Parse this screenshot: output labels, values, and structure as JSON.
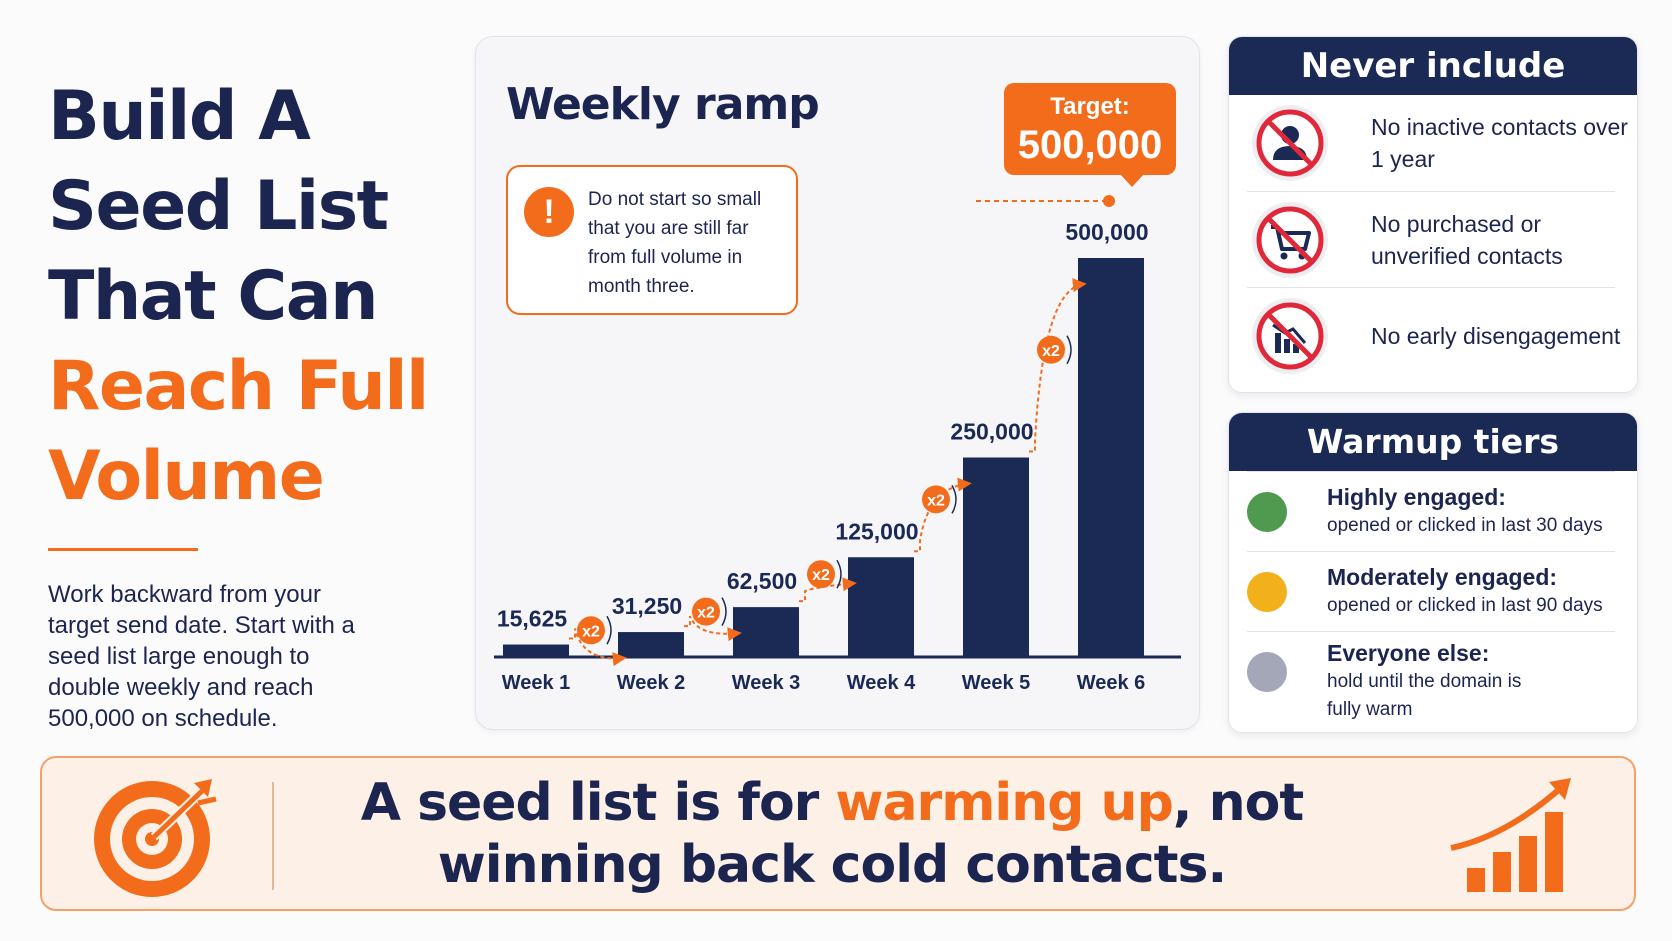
{
  "headline": {
    "line1": "Build A",
    "line2": "Seed List",
    "line3": "That Can",
    "line4": "Reach Full",
    "line5": "Volume"
  },
  "intro": "Work backward from your target send date. Start with a seed list large enough to double weekly and reach 500,000 on schedule.",
  "colors": {
    "navy": "#1b2a55",
    "orange": "#f26c1c",
    "green": "#4f9a4e",
    "amber": "#f2b01b",
    "gray": "#a3a7b8"
  },
  "chart_card": {
    "title": "Weekly ramp",
    "warning": "Do not start so small that you are still far from full volume in month three.",
    "target_label": "Target:",
    "target_value": "500,000"
  },
  "chart_data": {
    "type": "bar",
    "title": "Weekly ramp",
    "categories": [
      "Week 1",
      "Week 2",
      "Week 3",
      "Week 4",
      "Week 5",
      "Week 6"
    ],
    "values": [
      15625,
      31250,
      62500,
      125000,
      250000,
      500000
    ],
    "value_labels": [
      "15,625",
      "31,250",
      "62,500",
      "125,000",
      "250,000",
      "500,000"
    ],
    "step_label": "x2",
    "target": 500000,
    "ylim": [
      0,
      500000
    ],
    "grid": false
  },
  "never_include": {
    "title": "Never include",
    "items": [
      {
        "icon": "no-inactive-person-icon",
        "text": "No inactive contacts over 1 year"
      },
      {
        "icon": "no-shopping-cart-icon",
        "text": "No purchased or unverified contacts"
      },
      {
        "icon": "no-declining-chart-icon",
        "text": "No early disengagement"
      }
    ]
  },
  "warmup_tiers": {
    "title": "Warmup tiers",
    "tiers": [
      {
        "name": "Highly engaged:",
        "desc": "opened or clicked in last 30 days",
        "color": "#4f9a4e"
      },
      {
        "name": "Moderately engaged:",
        "desc": "opened or clicked in last 90 days",
        "color": "#f2b01b"
      },
      {
        "name": "Everyone else:",
        "desc": "hold until the domain is fully warm",
        "color": "#a3a7b8"
      }
    ]
  },
  "banner": {
    "part1": "A seed list is for ",
    "highlight": "warming up",
    "part2": ", not winning back cold contacts."
  }
}
